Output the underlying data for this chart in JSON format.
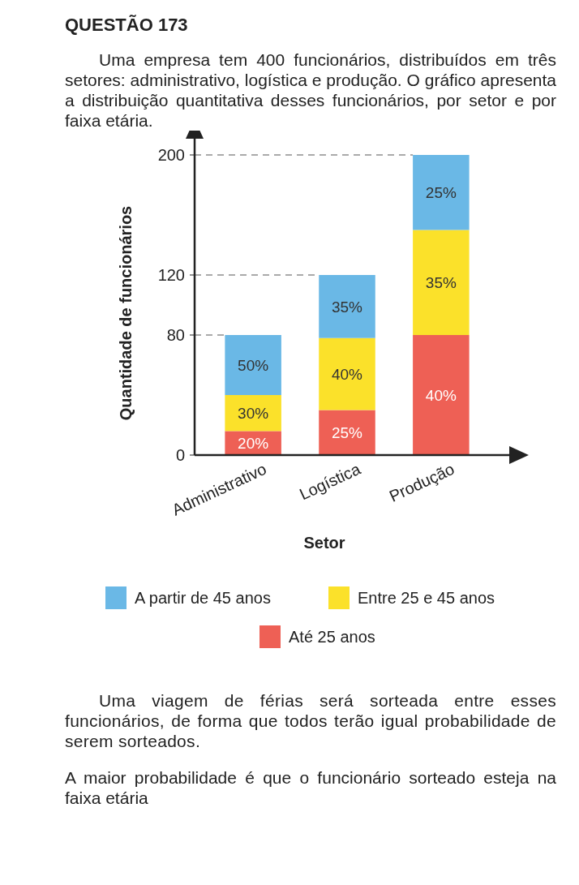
{
  "chart_data": {
    "type": "bar",
    "stacked": true,
    "title": "QUESTÃO 173",
    "subtitle": "Uma empresa tem 400 funcionários, distribuídos em três setores: administrativo, logística e produção. O gráfico apresenta a distribuição quantitativa desses funcionários, por setor e por faixa etária.",
    "xlabel": "Setor",
    "ylabel": "Quantidade de funcionários",
    "categories": [
      "Administrativo",
      "Logística",
      "Produção"
    ],
    "series": [
      {
        "name": "Até 25 anos",
        "color": "#ee6055",
        "values": [
          16,
          30,
          80
        ]
      },
      {
        "name": "Entre 25 e 45 anos",
        "color": "#fbe12a",
        "values": [
          24,
          48,
          70
        ]
      },
      {
        "name": "A partir de 45 anos",
        "color": "#6ab8e6",
        "values": [
          40,
          42,
          50
        ]
      }
    ],
    "ylim": [
      0,
      200
    ],
    "yticks": [
      0,
      80,
      120,
      200
    ],
    "legend": "bottom",
    "ref_lines": [
      {
        "axis": "y",
        "value": 80,
        "line_style": "dashed"
      },
      {
        "axis": "y",
        "value": 120,
        "line_style": "dashed"
      },
      {
        "axis": "y",
        "value": 200,
        "line_style": "dashed"
      }
    ],
    "annotations": [
      "20%",
      "30%",
      "50%",
      "25%",
      "40%",
      "35%",
      "40%",
      "35%",
      "25%",
      "Uma viagem de férias será sorteada entre esses funcionários, de forma que todos terão igual probabilidade de serem sorteados.",
      "A maior probabilidade é que o funcionário sorteado esteja na faixa etária"
    ]
  }
}
